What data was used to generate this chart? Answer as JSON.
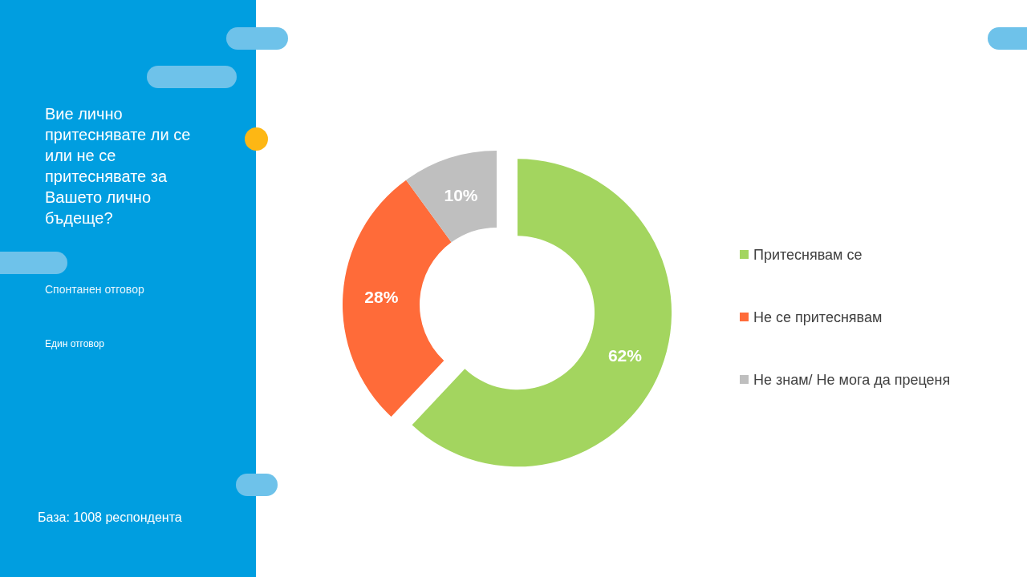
{
  "chart_data": {
    "type": "donut",
    "title": "Вие лично притеснявате ли се или не се притеснявате за Вашето лично бъдеще?",
    "subtitle": "Спонтанен отговор",
    "annotations": [
      "Един отговор",
      "База: 1008 респондента"
    ],
    "categories": [
      "Притеснявам се",
      "Не се притеснявам",
      "Не знам/ Не мога да преценя"
    ],
    "values": [
      62,
      28,
      10
    ],
    "value_labels": [
      "62%",
      "28%",
      "10%"
    ],
    "colors": [
      "#a3d55f",
      "#ff6b39",
      "#bfbfbf"
    ],
    "legend": "right"
  }
}
